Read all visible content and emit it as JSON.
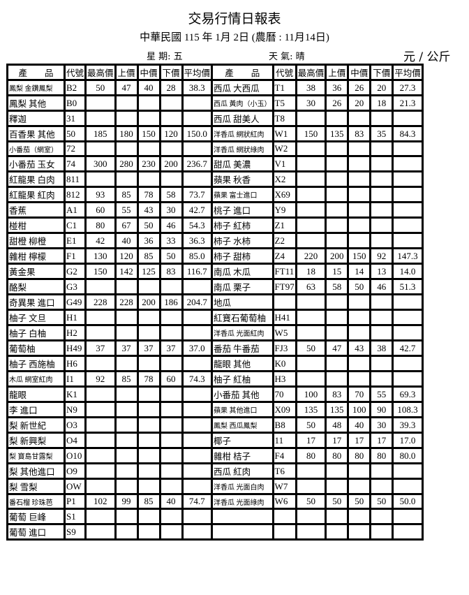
{
  "header": {
    "title": "交易行情日報表",
    "subtitle": "中華民國 115 年 1月 2日 (農曆 : 11月14日)",
    "weekday": "星 期:  五",
    "weather": "天 氣:   晴",
    "unit": "元 / 公斤"
  },
  "columns": [
    "產　　品",
    "代號",
    "最高價",
    "上價",
    "中價",
    "下價",
    "平均價",
    "產　　品",
    "代號",
    "最高價",
    "上價",
    "中價",
    "下價",
    "平均價"
  ],
  "rows": [
    [
      [
        "鳳梨 金鑽鳳梨",
        "B2",
        "50",
        "47",
        "40",
        "28",
        "38.3"
      ],
      [
        "西瓜 大西瓜",
        "T1",
        "38",
        "36",
        "26",
        "20",
        "27.3"
      ]
    ],
    [
      [
        "鳳梨 其他",
        "B0",
        "",
        "",
        "",
        "",
        ""
      ],
      [
        "西瓜 黃肉（小玉）",
        "T5",
        "30",
        "26",
        "20",
        "18",
        "21.3"
      ]
    ],
    [
      [
        "釋迦",
        "31",
        "",
        "",
        "",
        "",
        ""
      ],
      [
        "西瓜 甜美人",
        "T8",
        "",
        "",
        "",
        "",
        ""
      ]
    ],
    [
      [
        "百香果 其他",
        "50",
        "185",
        "180",
        "150",
        "120",
        "150.0"
      ],
      [
        "洋香瓜 網狀紅肉",
        "W1",
        "150",
        "135",
        "83",
        "35",
        "84.3"
      ]
    ],
    [
      [
        "小番茄（網室）",
        "72",
        "",
        "",
        "",
        "",
        ""
      ],
      [
        "洋香瓜 網狀綠肉",
        "W2",
        "",
        "",
        "",
        "",
        ""
      ]
    ],
    [
      [
        "小番茄 玉女",
        "74",
        "300",
        "280",
        "230",
        "200",
        "236.7"
      ],
      [
        "甜瓜 美濃",
        "V1",
        "",
        "",
        "",
        "",
        ""
      ]
    ],
    [
      [
        "紅龍果 白肉",
        "811",
        "",
        "",
        "",
        "",
        ""
      ],
      [
        "蘋果 秋香",
        "X2",
        "",
        "",
        "",
        "",
        ""
      ]
    ],
    [
      [
        "紅龍果 紅肉",
        "812",
        "93",
        "85",
        "78",
        "58",
        "73.7"
      ],
      [
        "蘋果 富士進口",
        "X69",
        "",
        "",
        "",
        "",
        ""
      ]
    ],
    [
      [
        "香蕉",
        "A1",
        "60",
        "55",
        "43",
        "30",
        "42.7"
      ],
      [
        "桃子 進口",
        "Y9",
        "",
        "",
        "",
        "",
        ""
      ]
    ],
    [
      [
        "椪柑",
        "C1",
        "80",
        "67",
        "50",
        "46",
        "54.3"
      ],
      [
        "柿子 紅柿",
        "Z1",
        "",
        "",
        "",
        "",
        ""
      ]
    ],
    [
      [
        "甜橙 柳橙",
        "E1",
        "42",
        "40",
        "36",
        "33",
        "36.3"
      ],
      [
        "柿子 水柿",
        "Z2",
        "",
        "",
        "",
        "",
        ""
      ]
    ],
    [
      [
        "雜柑 檸檬",
        "F1",
        "130",
        "120",
        "85",
        "50",
        "85.0"
      ],
      [
        "柿子 甜柿",
        "Z4",
        "220",
        "200",
        "150",
        "92",
        "147.3"
      ]
    ],
    [
      [
        "黃金果",
        "G2",
        "150",
        "142",
        "125",
        "83",
        "116.7"
      ],
      [
        "南瓜  木瓜",
        "FT11",
        "18",
        "15",
        "14",
        "13",
        "14.0"
      ]
    ],
    [
      [
        "酪梨",
        "G3",
        "",
        "",
        "",
        "",
        ""
      ],
      [
        "南瓜  栗子",
        "FT97",
        "63",
        "58",
        "50",
        "46",
        "51.3"
      ]
    ],
    [
      [
        "奇異果 進口",
        "G49",
        "228",
        "228",
        "200",
        "186",
        "204.7"
      ],
      [
        "地瓜",
        "",
        "",
        "",
        "",
        "",
        ""
      ]
    ],
    [
      [
        "柚子 文旦",
        "H1",
        "",
        "",
        "",
        "",
        ""
      ],
      [
        "紅寶石葡萄柚",
        "H41",
        "",
        "",
        "",
        "",
        ""
      ]
    ],
    [
      [
        "柚子 白柚",
        "H2",
        "",
        "",
        "",
        "",
        ""
      ],
      [
        "洋香瓜 光面紅肉",
        "W5",
        "",
        "",
        "",
        "",
        ""
      ]
    ],
    [
      [
        "葡萄柚",
        "H49",
        "37",
        "37",
        "37",
        "37",
        "37.0"
      ],
      [
        "番茄 牛番茄",
        "FJ3",
        "50",
        "47",
        "43",
        "38",
        "42.7"
      ]
    ],
    [
      [
        "柚子 西施柚",
        "H6",
        "",
        "",
        "",
        "",
        ""
      ],
      [
        "龍眼 其他",
        "K0",
        "",
        "",
        "",
        "",
        ""
      ]
    ],
    [
      [
        "木瓜 網室紅肉",
        "I1",
        "92",
        "85",
        "78",
        "60",
        "74.3"
      ],
      [
        "柚子 紅柚",
        "H3",
        "",
        "",
        "",
        "",
        ""
      ]
    ],
    [
      [
        "龍眼",
        "K1",
        "",
        "",
        "",
        "",
        ""
      ],
      [
        "小番茄 其他",
        "70",
        "100",
        "83",
        "70",
        "55",
        "69.3"
      ]
    ],
    [
      [
        "李 進口",
        "N9",
        "",
        "",
        "",
        "",
        ""
      ],
      [
        "蘋果 其他進口",
        "X09",
        "135",
        "135",
        "100",
        "90",
        "108.3"
      ]
    ],
    [
      [
        "梨 新世紀",
        "O3",
        "",
        "",
        "",
        "",
        ""
      ],
      [
        "鳳梨 西瓜鳳梨",
        "B8",
        "50",
        "48",
        "40",
        "30",
        "39.3"
      ]
    ],
    [
      [
        "梨 新興梨",
        "O4",
        "",
        "",
        "",
        "",
        ""
      ],
      [
        "椰子",
        "11",
        "17",
        "17",
        "17",
        "17",
        "17.0"
      ]
    ],
    [
      [
        "梨 寶島甘露梨",
        "O10",
        "",
        "",
        "",
        "",
        ""
      ],
      [
        "雜柑 桔子",
        "F4",
        "80",
        "80",
        "80",
        "80",
        "80.0"
      ]
    ],
    [
      [
        "梨 其他進口",
        "O9",
        "",
        "",
        "",
        "",
        ""
      ],
      [
        "西瓜 紅肉",
        "T6",
        "",
        "",
        "",
        "",
        ""
      ]
    ],
    [
      [
        "梨 雪梨",
        "OW",
        "",
        "",
        "",
        "",
        ""
      ],
      [
        "洋香瓜 光面白肉",
        "W7",
        "",
        "",
        "",
        "",
        ""
      ]
    ],
    [
      [
        "番石榴 珍珠芭",
        "P1",
        "102",
        "99",
        "85",
        "40",
        "74.7"
      ],
      [
        "洋香瓜 光面綠肉",
        "W6",
        "50",
        "50",
        "50",
        "50",
        "50.0"
      ]
    ],
    [
      [
        "葡萄 巨峰",
        "S1",
        "",
        "",
        "",
        "",
        ""
      ],
      [
        "",
        "",
        "",
        "",
        "",
        "",
        ""
      ]
    ],
    [
      [
        "葡萄 進口",
        "S9",
        "",
        "",
        "",
        "",
        ""
      ],
      [
        "",
        "",
        "",
        "",
        "",
        "",
        ""
      ]
    ]
  ]
}
